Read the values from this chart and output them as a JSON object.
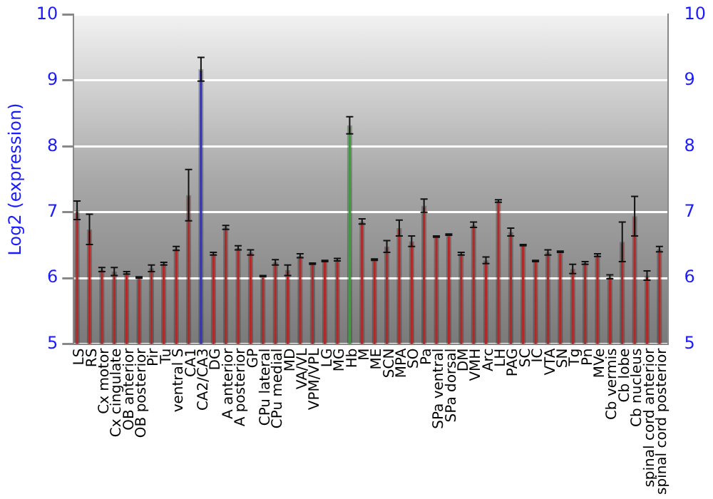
{
  "chart_data": {
    "type": "bar",
    "ylabel": "Log2 (expression)",
    "categories": [
      "LS",
      "RS",
      "Cx motor",
      "Cx cingulate",
      "OB anterior",
      "OB posterior",
      "Pir",
      "Tu",
      "ventral S",
      "CA1",
      "CA2/CA3",
      "DG",
      "A anterior",
      "A posterior",
      "GP",
      "CPu lateral",
      "CPu medial",
      "MD",
      "VA/VL",
      "VPM/VPL",
      "LG",
      "MG",
      "Hb",
      "M",
      "ME",
      "SCN",
      "MPA",
      "SO",
      "Pa",
      "SPa ventral",
      "SPa dorsal",
      "DM",
      "VMH",
      "Arc",
      "LH",
      "PAG",
      "SC",
      "IC",
      "VTA",
      "SN",
      "Tg",
      "Pn",
      "MVe",
      "Cb vermis",
      "Cb lobe",
      "Cb nucleus",
      "spinal cord anterior",
      "spinal cord posterior"
    ],
    "values": [
      7.03,
      6.74,
      6.13,
      6.1,
      6.08,
      6.01,
      6.15,
      6.22,
      6.45,
      7.26,
      9.17,
      6.37,
      6.77,
      6.46,
      6.39,
      6.03,
      6.24,
      6.12,
      6.34,
      6.22,
      6.26,
      6.28,
      8.32,
      6.86,
      6.28,
      6.48,
      6.76,
      6.56,
      7.1,
      6.63,
      6.66,
      6.37,
      6.81,
      6.27,
      7.17,
      6.7,
      6.5,
      6.26,
      6.39,
      6.4,
      6.14,
      6.23,
      6.35,
      6.02,
      6.55,
      6.94,
      6.04,
      6.44
    ],
    "errors": [
      0.14,
      0.23,
      0.03,
      0.06,
      0.02,
      0.01,
      0.05,
      0.02,
      0.03,
      0.39,
      0.18,
      0.02,
      0.03,
      0.03,
      0.04,
      0.01,
      0.04,
      0.08,
      0.03,
      0.01,
      0.01,
      0.02,
      0.13,
      0.04,
      0.01,
      0.09,
      0.12,
      0.08,
      0.1,
      0.01,
      0.01,
      0.02,
      0.04,
      0.05,
      0.02,
      0.06,
      0.01,
      0.01,
      0.04,
      0.01,
      0.07,
      0.02,
      0.02,
      0.03,
      0.3,
      0.3,
      0.07,
      0.04
    ],
    "colors": [
      "#b02a2a",
      "#b02a2a",
      "#b02a2a",
      "#b02a2a",
      "#b02a2a",
      "#b02a2a",
      "#b02a2a",
      "#b02a2a",
      "#b02a2a",
      "#b02a2a",
      "#3535b0",
      "#b02a2a",
      "#b02a2a",
      "#b02a2a",
      "#b02a2a",
      "#b02a2a",
      "#b02a2a",
      "#b02a2a",
      "#b02a2a",
      "#b02a2a",
      "#b02a2a",
      "#b02a2a",
      "#35a035",
      "#b02a2a",
      "#b02a2a",
      "#b02a2a",
      "#b02a2a",
      "#b02a2a",
      "#b02a2a",
      "#b02a2a",
      "#b02a2a",
      "#b02a2a",
      "#b02a2a",
      "#b02a2a",
      "#b02a2a",
      "#b02a2a",
      "#b02a2a",
      "#b02a2a",
      "#b02a2a",
      "#b02a2a",
      "#b02a2a",
      "#b02a2a",
      "#b02a2a",
      "#b02a2a",
      "#b02a2a",
      "#b02a2a",
      "#b02a2a",
      "#b02a2a"
    ],
    "ylim": [
      5,
      10
    ],
    "yticks": [
      5,
      6,
      7,
      8,
      9,
      10
    ],
    "y2lim": [
      5,
      10
    ],
    "y2ticks": [
      5,
      6,
      7,
      8,
      9,
      10
    ],
    "grid": "y",
    "legend": false
  }
}
